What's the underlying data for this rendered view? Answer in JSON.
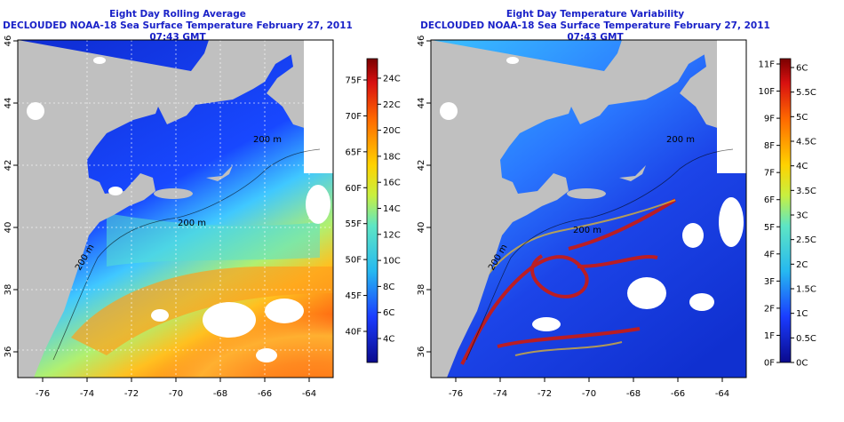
{
  "left_panel": {
    "title": "Eight Day Rolling Average",
    "subtitle": "DECLOUDED NOAA-18 Sea Surface Temperature February 27, 2011 07:43 GMT",
    "colorbar_left": [
      "75F",
      "70F",
      "65F",
      "60F",
      "55F",
      "50F",
      "45F",
      "40F"
    ],
    "colorbar_right": [
      "24C",
      "22C",
      "20C",
      "18C",
      "16C",
      "14C",
      "12C",
      "10C",
      "8C",
      "6C",
      "4C"
    ],
    "contour_labels": [
      "200 m",
      "200 m",
      "200 m"
    ]
  },
  "right_panel": {
    "title": "Eight Day Temperature Variability",
    "subtitle": "DECLOUDED NOAA-18 Sea Surface Temperature February 27, 2011 07:43 GMT",
    "colorbar_left": [
      "11F",
      "10F",
      "9F",
      "8F",
      "7F",
      "6F",
      "5F",
      "4F",
      "3F",
      "2F",
      "1F",
      "0F"
    ],
    "colorbar_right": [
      "6C",
      "5.5C",
      "5C",
      "4.5C",
      "4C",
      "3.5C",
      "3C",
      "2.5C",
      "2C",
      "1.5C",
      "1C",
      "0.5C",
      "0C"
    ],
    "contour_labels": [
      "200 m",
      "200 m",
      "200 m"
    ]
  },
  "x_ticks": [
    "-76",
    "-74",
    "-72",
    "-70",
    "-68",
    "-66",
    "-64"
  ],
  "y_ticks": [
    "46",
    "44",
    "42",
    "40",
    "38",
    "36"
  ],
  "colors": {
    "title": "#1a22c8",
    "land": "#c0c0c0"
  }
}
